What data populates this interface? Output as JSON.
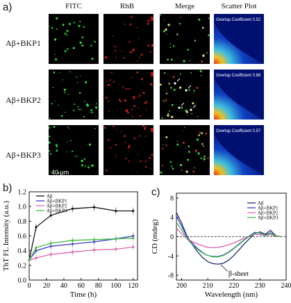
{
  "panel_a": {
    "letter": "a)",
    "column_headers": [
      "FITC",
      "RhB",
      "Merge",
      "Scatter Plot"
    ],
    "rows": [
      {
        "label": "Aβ+BKP1",
        "overlap_label": "Overlap Coefficient",
        "overlap_value": "0.52"
      },
      {
        "label": "Aβ+BKP2",
        "overlap_label": "Overlap Coefficient",
        "overlap_value": "0.68"
      },
      {
        "label": "Aβ+BKP3",
        "overlap_label": "Overlap Coefficient",
        "overlap_value": "0.57"
      }
    ],
    "scale_bar": "40 μm"
  },
  "chart_data": [
    {
      "panel": "b)",
      "type": "line",
      "xlabel": "Time (h)",
      "ylabel": "ThT FL Intensity (a.u.)",
      "xlim": [
        0,
        125
      ],
      "ylim": [
        0.0,
        1.2
      ],
      "xticks": [
        0,
        20,
        40,
        60,
        80,
        100,
        120
      ],
      "yticks": [
        0.0,
        0.2,
        0.4,
        0.6,
        0.8,
        1.0,
        1.2
      ],
      "legend_position": "top-left",
      "series": [
        {
          "name": "Aβ",
          "color": "#111111",
          "x": [
            0,
            8,
            25,
            50,
            75,
            100,
            120
          ],
          "y": [
            0.27,
            0.72,
            0.88,
            0.97,
            0.99,
            0.94,
            0.94
          ]
        },
        {
          "name": "Aβ+BKP1",
          "color": "#3a3acc",
          "x": [
            0,
            8,
            25,
            50,
            75,
            100,
            120
          ],
          "y": [
            0.27,
            0.4,
            0.46,
            0.49,
            0.52,
            0.56,
            0.6
          ]
        },
        {
          "name": "Aβ+BKP2",
          "color": "#e060b0",
          "x": [
            0,
            8,
            25,
            50,
            75,
            100,
            120
          ],
          "y": [
            0.27,
            0.3,
            0.35,
            0.38,
            0.41,
            0.42,
            0.45
          ]
        },
        {
          "name": "Aβ+BKP3",
          "color": "#44bb44",
          "x": [
            0,
            8,
            25,
            50,
            75,
            100,
            120
          ],
          "y": [
            0.27,
            0.44,
            0.5,
            0.54,
            0.55,
            0.56,
            0.57
          ]
        }
      ]
    },
    {
      "panel": "c)",
      "type": "line",
      "xlabel": "Wavelength (nm)",
      "ylabel": "CD (mdeg)",
      "xlim": [
        198,
        240
      ],
      "ylim": [
        -9,
        9
      ],
      "xticks": [
        200,
        210,
        220,
        230,
        240
      ],
      "yticks": [
        -8,
        -4,
        0,
        4,
        8
      ],
      "legend_position": "top-right",
      "annotation": "β-sheet",
      "series": [
        {
          "name": "Aβ",
          "color": "#1a2a6a",
          "x": [
            198,
            200,
            202,
            204,
            206,
            208,
            210,
            212,
            214,
            216,
            218,
            220,
            222,
            224,
            226,
            228,
            230,
            232,
            234,
            236,
            238
          ],
          "y": [
            5.0,
            2.8,
            0.2,
            -1.6,
            -3.1,
            -4.3,
            -5.2,
            -5.6,
            -5.7,
            -5.5,
            -4.9,
            -3.9,
            -2.7,
            -1.5,
            -0.4,
            0.6,
            1.0,
            0.5,
            1.3,
            0.2,
            0.0
          ]
        },
        {
          "name": "Aβ+BKP1",
          "color": "#3a3acc",
          "x": [
            198,
            200,
            202,
            204,
            206,
            208,
            210,
            212,
            214,
            216,
            218,
            220,
            222,
            224,
            226,
            228,
            230,
            232,
            234,
            236,
            238
          ],
          "y": [
            4.2,
            2.2,
            0.0,
            -1.3,
            -2.4,
            -3.3,
            -3.9,
            -4.1,
            -4.1,
            -3.8,
            -3.2,
            -2.4,
            -1.5,
            -0.6,
            0.2,
            0.9,
            0.7,
            0.3,
            0.8,
            0.1,
            0.0
          ]
        },
        {
          "name": "Aβ+BKP2",
          "color": "#e060b0",
          "x": [
            198,
            200,
            202,
            204,
            206,
            208,
            210,
            212,
            214,
            216,
            218,
            220,
            222,
            224,
            226,
            228,
            230,
            232,
            234,
            236,
            238
          ],
          "y": [
            1.8,
            0.6,
            -0.4,
            -1.0,
            -1.5,
            -1.9,
            -2.2,
            -2.3,
            -2.2,
            -2.0,
            -1.7,
            -1.3,
            -0.8,
            -0.3,
            0.1,
            0.5,
            0.4,
            0.2,
            0.4,
            0.1,
            0.0
          ]
        },
        {
          "name": "Aβ+BKP3",
          "color": "#44bb44",
          "x": [
            198,
            200,
            202,
            204,
            206,
            208,
            210,
            212,
            214,
            216,
            218,
            220,
            222,
            224,
            226,
            228,
            230,
            232,
            234,
            236,
            238
          ],
          "y": [
            3.0,
            1.4,
            -0.4,
            -1.6,
            -2.6,
            -3.4,
            -3.9,
            -4.2,
            -4.2,
            -3.9,
            -3.3,
            -2.5,
            -1.6,
            -0.7,
            0.1,
            0.7,
            0.9,
            0.2,
            0.7,
            0.1,
            0.0
          ]
        }
      ]
    }
  ]
}
